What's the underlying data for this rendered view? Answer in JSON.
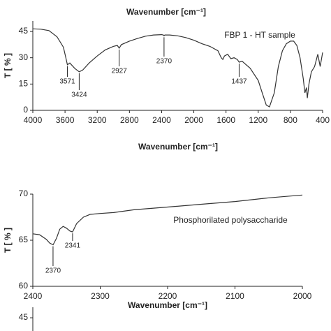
{
  "chart_data": [
    {
      "type": "line",
      "x_label": "Wavenumber [cm⁻¹]"
    },
    {
      "type": "line",
      "x_label": "Wavenumber [cm⁻¹]",
      "y_label": "T [ % ]",
      "legend_text": "FBP 1 - HT sample",
      "xlim": [
        4000,
        400
      ],
      "xticks": [
        4000,
        3600,
        3200,
        2800,
        2400,
        2000,
        1600,
        1200,
        800,
        400
      ],
      "ylim": [
        0,
        51
      ],
      "yticks": [
        0,
        15,
        30,
        45
      ],
      "color": "#333333",
      "x": [
        4000,
        3900,
        3800,
        3700,
        3620,
        3590,
        3571,
        3540,
        3480,
        3424,
        3380,
        3300,
        3200,
        3100,
        3000,
        2950,
        2927,
        2900,
        2800,
        2700,
        2600,
        2500,
        2400,
        2380,
        2370,
        2360,
        2300,
        2200,
        2100,
        2000,
        1900,
        1800,
        1700,
        1660,
        1640,
        1620,
        1580,
        1540,
        1500,
        1460,
        1437,
        1400,
        1300,
        1200,
        1150,
        1100,
        1060,
        1000,
        950,
        900,
        850,
        800,
        760,
        720,
        680,
        640,
        620,
        600,
        590,
        570,
        540,
        500,
        460,
        430,
        400
      ],
      "values": [
        46.5,
        46.3,
        45.5,
        42,
        36,
        30,
        26,
        27,
        24,
        22,
        23,
        27,
        31,
        34.5,
        36.5,
        37,
        35.5,
        37.5,
        39.5,
        41,
        42.3,
        43,
        43.2,
        43,
        42.5,
        43,
        43,
        42.5,
        41.5,
        40,
        38,
        36.5,
        34,
        30,
        29,
        31,
        32,
        29.5,
        30,
        29,
        27.5,
        28,
        24,
        17,
        10,
        3,
        2,
        10,
        25,
        34,
        38,
        39.5,
        39.5,
        37,
        30,
        18,
        10,
        13,
        7,
        15,
        22,
        25,
        32,
        25,
        33
      ],
      "annotations": [
        3571,
        3424,
        2927,
        2370,
        1437
      ]
    },
    {
      "type": "line",
      "x_label": "Wavenumber [cm⁻¹]",
      "y_label": "T [ % ]",
      "legend_text": "Phosphorilated polysaccharide",
      "xlim": [
        2400,
        2000
      ],
      "xticks": [
        2400,
        2300,
        2200,
        2100,
        2000
      ],
      "ylim": [
        60,
        70
      ],
      "yticks": [
        60,
        65,
        70
      ],
      "color": "#333333",
      "x": [
        2400,
        2390,
        2380,
        2375,
        2370,
        2365,
        2360,
        2355,
        2350,
        2345,
        2341,
        2335,
        2325,
        2315,
        2300,
        2280,
        2250,
        2200,
        2150,
        2100,
        2050,
        2000
      ],
      "values": [
        65.7,
        65.6,
        65.1,
        64.7,
        64.5,
        65.2,
        66.2,
        66.5,
        66.3,
        66.0,
        65.9,
        66.8,
        67.5,
        67.8,
        67.9,
        68.0,
        68.3,
        68.6,
        68.9,
        69.2,
        69.6,
        69.9
      ],
      "annotations": [
        2370,
        2341
      ]
    },
    {
      "type": "line",
      "ylim": [
        0,
        51
      ],
      "yticks": [
        45
      ]
    }
  ]
}
